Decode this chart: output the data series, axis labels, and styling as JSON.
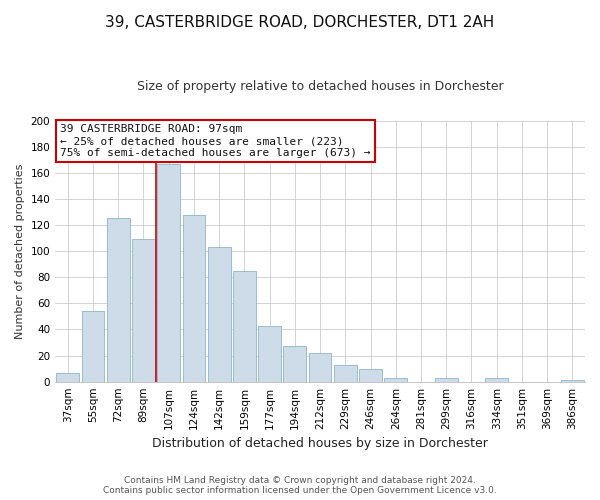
{
  "title": "39, CASTERBRIDGE ROAD, DORCHESTER, DT1 2AH",
  "subtitle": "Size of property relative to detached houses in Dorchester",
  "xlabel": "Distribution of detached houses by size in Dorchester",
  "ylabel": "Number of detached properties",
  "footer_line1": "Contains HM Land Registry data © Crown copyright and database right 2024.",
  "footer_line2": "Contains public sector information licensed under the Open Government Licence v3.0.",
  "bar_labels": [
    "37sqm",
    "55sqm",
    "72sqm",
    "89sqm",
    "107sqm",
    "124sqm",
    "142sqm",
    "159sqm",
    "177sqm",
    "194sqm",
    "212sqm",
    "229sqm",
    "246sqm",
    "264sqm",
    "281sqm",
    "299sqm",
    "316sqm",
    "334sqm",
    "351sqm",
    "369sqm",
    "386sqm"
  ],
  "bar_values": [
    7,
    54,
    125,
    109,
    167,
    128,
    103,
    85,
    43,
    27,
    22,
    13,
    10,
    3,
    0,
    3,
    0,
    3,
    0,
    0,
    1
  ],
  "bar_color": "#cddce8",
  "bar_edge_color": "#8fb4cc",
  "annotation_line1": "39 CASTERBRIDGE ROAD: 97sqm",
  "annotation_line2": "← 25% of detached houses are smaller (223)",
  "annotation_line3": "75% of semi-detached houses are larger (673) →",
  "annotation_box_edge_color": "#cc0000",
  "annotation_box_fill": "#ffffff",
  "reference_line_color": "#cc0000",
  "reference_line_idx": 4,
  "ylim": [
    0,
    200
  ],
  "yticks": [
    0,
    20,
    40,
    60,
    80,
    100,
    120,
    140,
    160,
    180,
    200
  ],
  "grid_color": "#cccccc",
  "background_color": "#ffffff",
  "plot_bg_color": "#ffffff",
  "title_fontsize": 11,
  "subtitle_fontsize": 9,
  "xlabel_fontsize": 9,
  "ylabel_fontsize": 8,
  "tick_fontsize": 7.5,
  "annotation_fontsize": 8,
  "footer_fontsize": 6.5
}
